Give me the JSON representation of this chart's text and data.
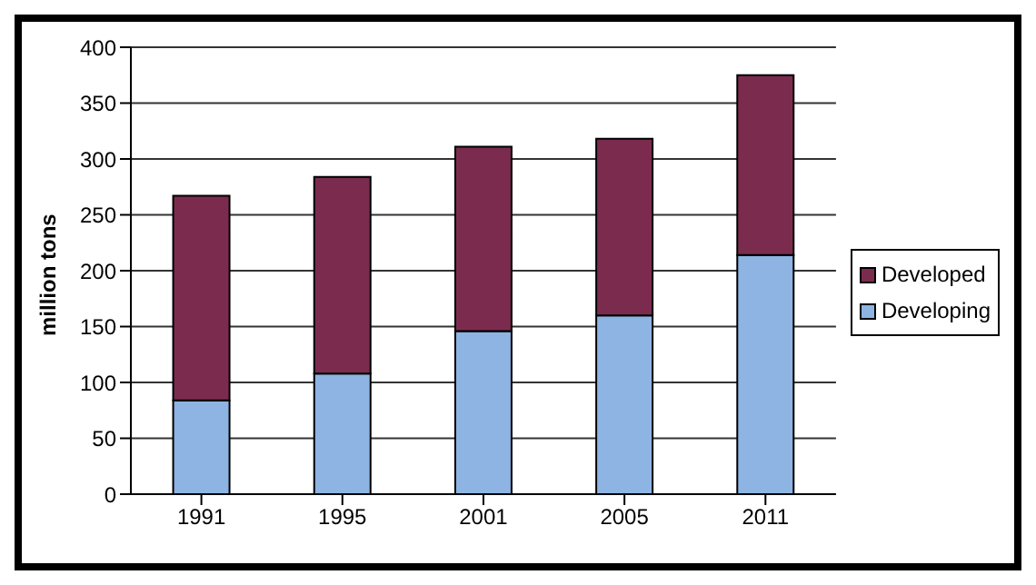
{
  "chart_data": {
    "type": "bar",
    "stacked": true,
    "ylabel": "million tons",
    "categories": [
      "1991",
      "1995",
      "2001",
      "2005",
      "2011"
    ],
    "series": [
      {
        "name": "Developing",
        "color": "#8db4e2",
        "values": [
          84,
          108,
          146,
          160,
          214
        ]
      },
      {
        "name": "Developed",
        "color": "#7b2c4e",
        "values": [
          183,
          176,
          165,
          158,
          161
        ]
      }
    ],
    "ylim": [
      0,
      400
    ],
    "yticks": [
      0,
      50,
      100,
      150,
      200,
      250,
      300,
      350,
      400
    ],
    "grid": "y",
    "legend": "right"
  }
}
